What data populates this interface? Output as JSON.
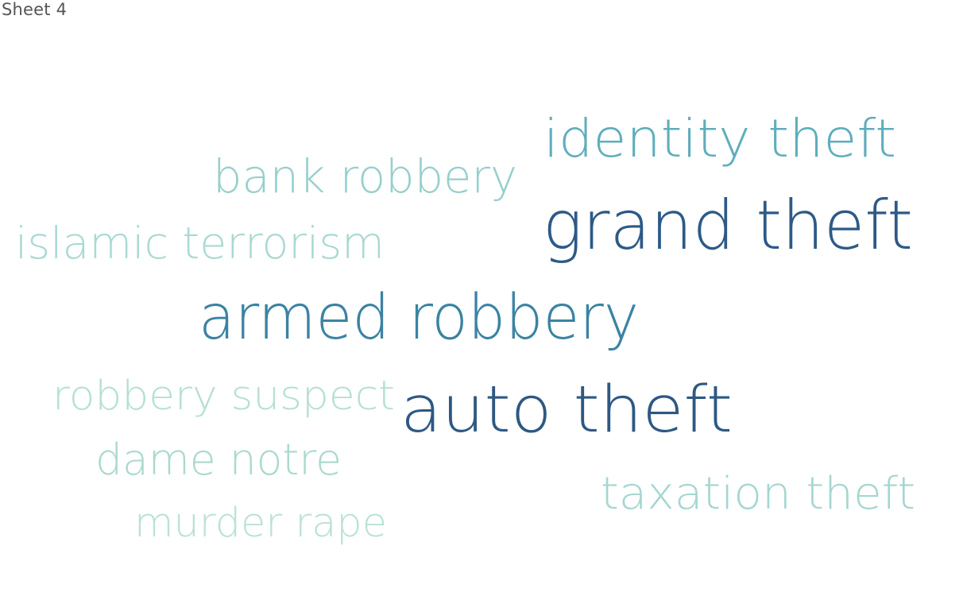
{
  "sheet": {
    "title": "Sheet 4"
  },
  "chart_data": {
    "type": "wordcloud",
    "words": [
      {
        "text": "grand theft",
        "color": "#2d5a87"
      },
      {
        "text": "auto theft",
        "color": "#2e5883"
      },
      {
        "text": "armed robbery",
        "color": "#3a83a3"
      },
      {
        "text": "identity theft",
        "color": "#5fadbd"
      },
      {
        "text": "bank robbery",
        "color": "#96cfcd"
      },
      {
        "text": "islamic terrorism",
        "color": "#a9d9d2"
      },
      {
        "text": "taxation theft",
        "color": "#a5d6d1"
      },
      {
        "text": "dame notre",
        "color": "#a9d9cf"
      },
      {
        "text": "robbery suspect",
        "color": "#b5e0d3"
      },
      {
        "text": "murder rape",
        "color": "#b9e2d5"
      }
    ]
  }
}
